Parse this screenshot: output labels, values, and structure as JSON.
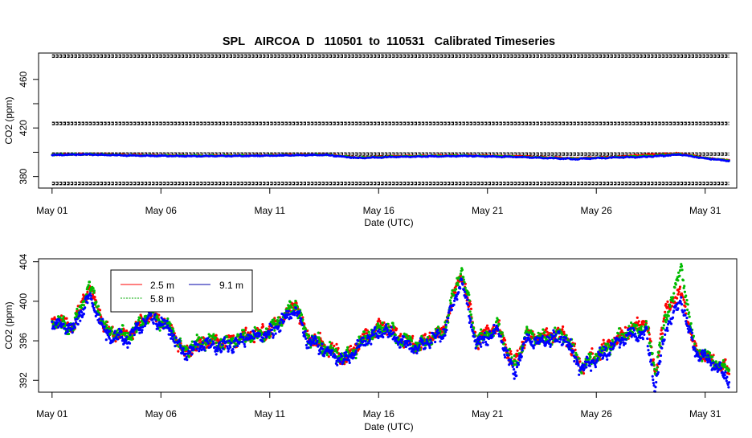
{
  "title": "SPL   AIRCOA  D   110501  to  110531   Calibrated Timeseries",
  "chart_data": [
    {
      "type": "scatter",
      "title": "SPL   AIRCOA  D   110501  to  110531   Calibrated Timeseries",
      "xlabel": "Date (UTC)",
      "ylabel": "CO2 (ppm)",
      "x_tick_labels": [
        "May 01",
        "May 06",
        "May 11",
        "May 16",
        "May 21",
        "May 26",
        "May 31"
      ],
      "x_ticks_day": [
        1,
        6,
        11,
        16,
        21,
        26,
        31
      ],
      "xlim_day": [
        0.38,
        32.45
      ],
      "yticks": [
        380,
        420,
        460
      ],
      "y_minor_ticks": [
        360,
        400,
        440
      ],
      "ylim": [
        370.5,
        481.7
      ],
      "series": [
        {
          "style": "calibration-levels",
          "color": "#000000",
          "levels_ppm": [
            374.3,
            398.5,
            423.7,
            479.2
          ],
          "x_range_day": [
            1.0,
            32.1
          ]
        },
        {
          "name": "2.5 m",
          "color": "#ff0000",
          "x_day": [
            1.0,
            2.5,
            5.0,
            8.0,
            11.0,
            13.5,
            15.0,
            17.0,
            20.0,
            22.5,
            25.0,
            27.0,
            28.5,
            29.8,
            31.0,
            32.1
          ],
          "y": [
            398.0,
            398.6,
            397.7,
            397.3,
            397.6,
            398.4,
            395.8,
            396.9,
            397.6,
            396.7,
            395.1,
            396.3,
            398.2,
            399.0,
            395.5,
            393.4
          ]
        },
        {
          "name": "5.8 m",
          "color": "#00bb00",
          "x_day": [
            1.0,
            2.5,
            5.0,
            8.0,
            11.0,
            13.5,
            15.0,
            17.0,
            20.0,
            22.5,
            25.0,
            27.0,
            28.5,
            29.8,
            31.0,
            32.1
          ],
          "y": [
            397.9,
            398.4,
            397.4,
            397.1,
            397.4,
            398.1,
            395.6,
            396.6,
            397.3,
            396.3,
            394.8,
            396.0,
            397.1,
            398.6,
            395.3,
            393.2
          ]
        },
        {
          "name": "9.1 m",
          "color": "#0000ff",
          "x_day": [
            1.0,
            2.5,
            5.0,
            8.0,
            11.0,
            13.5,
            15.0,
            17.0,
            20.0,
            22.5,
            25.0,
            27.0,
            28.5,
            29.8,
            31.0,
            32.1
          ],
          "y": [
            397.7,
            398.2,
            397.2,
            396.8,
            397.2,
            397.9,
            395.3,
            396.3,
            397.0,
            396.0,
            394.4,
            395.7,
            396.4,
            398.1,
            395.0,
            392.9
          ]
        }
      ]
    },
    {
      "type": "scatter",
      "xlabel": "Date (UTC)",
      "ylabel": "CO2 (ppm)",
      "x_tick_labels": [
        "May 01",
        "May 06",
        "May 11",
        "May 16",
        "May 21",
        "May 26",
        "May 31"
      ],
      "x_ticks_day": [
        1,
        6,
        11,
        16,
        21,
        26,
        31
      ],
      "xlim_day": [
        0.38,
        32.45
      ],
      "yticks": [
        392,
        396,
        400,
        404
      ],
      "ylim": [
        390.8,
        404.3
      ],
      "legend": {
        "placement": "top-left",
        "entries": [
          "2.5 m",
          "9.1 m",
          "5.8 m"
        ]
      },
      "series": [
        {
          "name": "2.5 m",
          "color": "#ff0000",
          "x_day": [
            1.0,
            2.0,
            2.7,
            3.5,
            4.5,
            5.5,
            6.5,
            7.0,
            8.0,
            9.0,
            10.0,
            11.0,
            12.2,
            12.7,
            13.5,
            14.5,
            15.5,
            16.3,
            17.0,
            17.8,
            19.0,
            19.8,
            20.5,
            21.5,
            22.2,
            22.8,
            23.5,
            24.5,
            25.3,
            26.0,
            26.5,
            27.5,
            28.3,
            28.7,
            29.2,
            29.9,
            30.5,
            31.3,
            32.1
          ],
          "y": [
            398.0,
            397.5,
            401.5,
            397.0,
            396.5,
            398.8,
            397.3,
            394.8,
            396.0,
            395.8,
            396.6,
            397.0,
            399.7,
            396.5,
            395.5,
            394.2,
            396.8,
            397.6,
            396.2,
            395.5,
            397.1,
            403.0,
            396.0,
            397.5,
            393.5,
            396.6,
            396.3,
            396.8,
            393.5,
            394.5,
            395.5,
            397.2,
            398.0,
            392.8,
            399.2,
            401.0,
            395.3,
            394.0,
            393.0
          ]
        },
        {
          "name": "5.8 m",
          "color": "#00bb00",
          "x_day": [
            1.0,
            2.0,
            2.7,
            3.5,
            4.5,
            5.5,
            6.5,
            7.0,
            8.0,
            9.0,
            10.0,
            11.0,
            12.2,
            12.7,
            13.5,
            14.5,
            15.5,
            16.3,
            17.0,
            17.8,
            19.0,
            19.8,
            20.5,
            21.5,
            22.2,
            22.8,
            23.5,
            24.5,
            25.3,
            26.0,
            26.5,
            27.5,
            28.3,
            28.7,
            29.2,
            29.9,
            30.5,
            31.3,
            32.1
          ],
          "y": [
            397.9,
            397.4,
            401.7,
            397.0,
            396.4,
            398.7,
            397.2,
            394.9,
            396.0,
            395.7,
            396.5,
            396.9,
            399.8,
            396.5,
            395.4,
            394.2,
            396.6,
            397.5,
            396.1,
            395.5,
            397.0,
            403.5,
            395.9,
            397.4,
            393.3,
            396.5,
            396.2,
            396.7,
            393.4,
            394.4,
            395.3,
            397.0,
            397.5,
            392.9,
            398.3,
            403.5,
            395.3,
            394.0,
            393.0
          ]
        },
        {
          "name": "9.1 m",
          "color": "#0000ff",
          "x_day": [
            1.0,
            2.0,
            2.7,
            3.5,
            4.5,
            5.5,
            6.5,
            7.0,
            8.0,
            9.0,
            10.0,
            11.0,
            12.2,
            12.7,
            13.5,
            14.5,
            15.5,
            16.3,
            17.0,
            17.8,
            19.0,
            19.8,
            20.5,
            21.5,
            22.2,
            22.8,
            23.5,
            24.5,
            25.3,
            26.0,
            26.5,
            27.5,
            28.3,
            28.7,
            29.2,
            29.9,
            30.5,
            31.3,
            32.1
          ],
          "y": [
            397.8,
            397.2,
            400.5,
            396.6,
            396.2,
            398.5,
            397.0,
            394.6,
            395.7,
            395.4,
            396.3,
            396.7,
            399.2,
            396.1,
            395.1,
            394.0,
            396.3,
            397.1,
            395.8,
            395.2,
            396.8,
            402.0,
            395.6,
            397.1,
            392.6,
            396.2,
            396.0,
            396.4,
            393.2,
            394.2,
            395.0,
            396.7,
            396.6,
            391.2,
            397.2,
            400.2,
            395.0,
            393.8,
            392.0
          ]
        }
      ]
    }
  ]
}
